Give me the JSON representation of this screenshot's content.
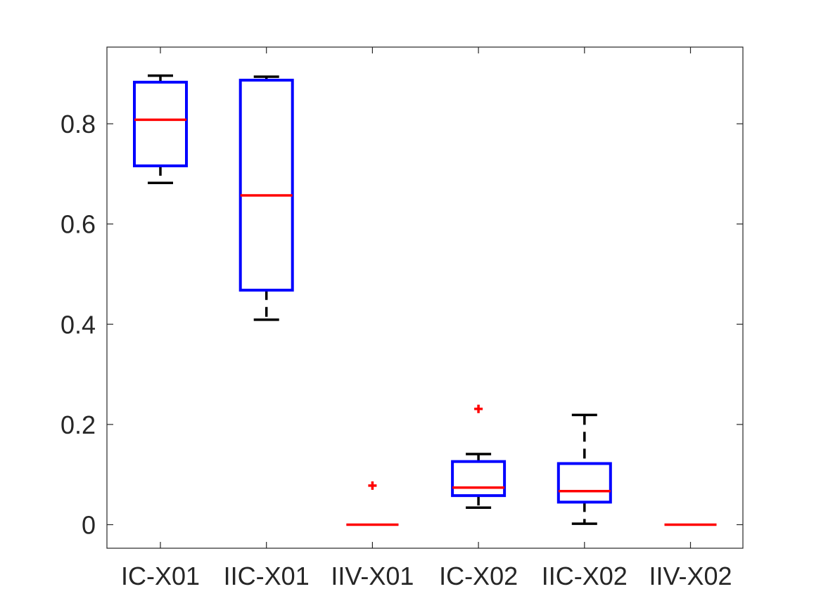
{
  "chart_data": {
    "type": "box",
    "title": "",
    "xlabel": "",
    "ylabel": "",
    "ylim": [
      -0.047,
      0.953
    ],
    "yticks": [
      0,
      0.2,
      0.4,
      0.6,
      0.8
    ],
    "ytick_labels": [
      "0",
      "0.2",
      "0.4",
      "0.6",
      "0.8"
    ],
    "categories": [
      "IC-X01",
      "IIC-X01",
      "IIV-X01",
      "IC-X02",
      "IIC-X02",
      "IIV-X02"
    ],
    "boxes": [
      {
        "whisker_low": 0.682,
        "q1": 0.716,
        "median": 0.808,
        "q3": 0.883,
        "whisker_high": 0.896,
        "outliers": []
      },
      {
        "whisker_low": 0.409,
        "q1": 0.468,
        "median": 0.657,
        "q3": 0.887,
        "whisker_high": 0.894,
        "outliers": []
      },
      {
        "whisker_low": 0.0,
        "q1": 0.0,
        "median": 0.0,
        "q3": 0.0,
        "whisker_high": 0.0,
        "outliers": [
          0.078
        ]
      },
      {
        "whisker_low": 0.034,
        "q1": 0.058,
        "median": 0.074,
        "q3": 0.126,
        "whisker_high": 0.141,
        "outliers": [
          0.231
        ]
      },
      {
        "whisker_low": 0.002,
        "q1": 0.045,
        "median": 0.067,
        "q3": 0.122,
        "whisker_high": 0.219,
        "outliers": []
      },
      {
        "whisker_low": 0.0,
        "q1": 0.0,
        "median": 0.0,
        "q3": 0.0,
        "whisker_high": 0.0,
        "outliers": []
      }
    ],
    "grid": false,
    "colors": {
      "box": "#0000ff",
      "median": "#ff0000",
      "whisker": "#000000",
      "outlier": "#ff0000",
      "axis": "#262626"
    }
  }
}
